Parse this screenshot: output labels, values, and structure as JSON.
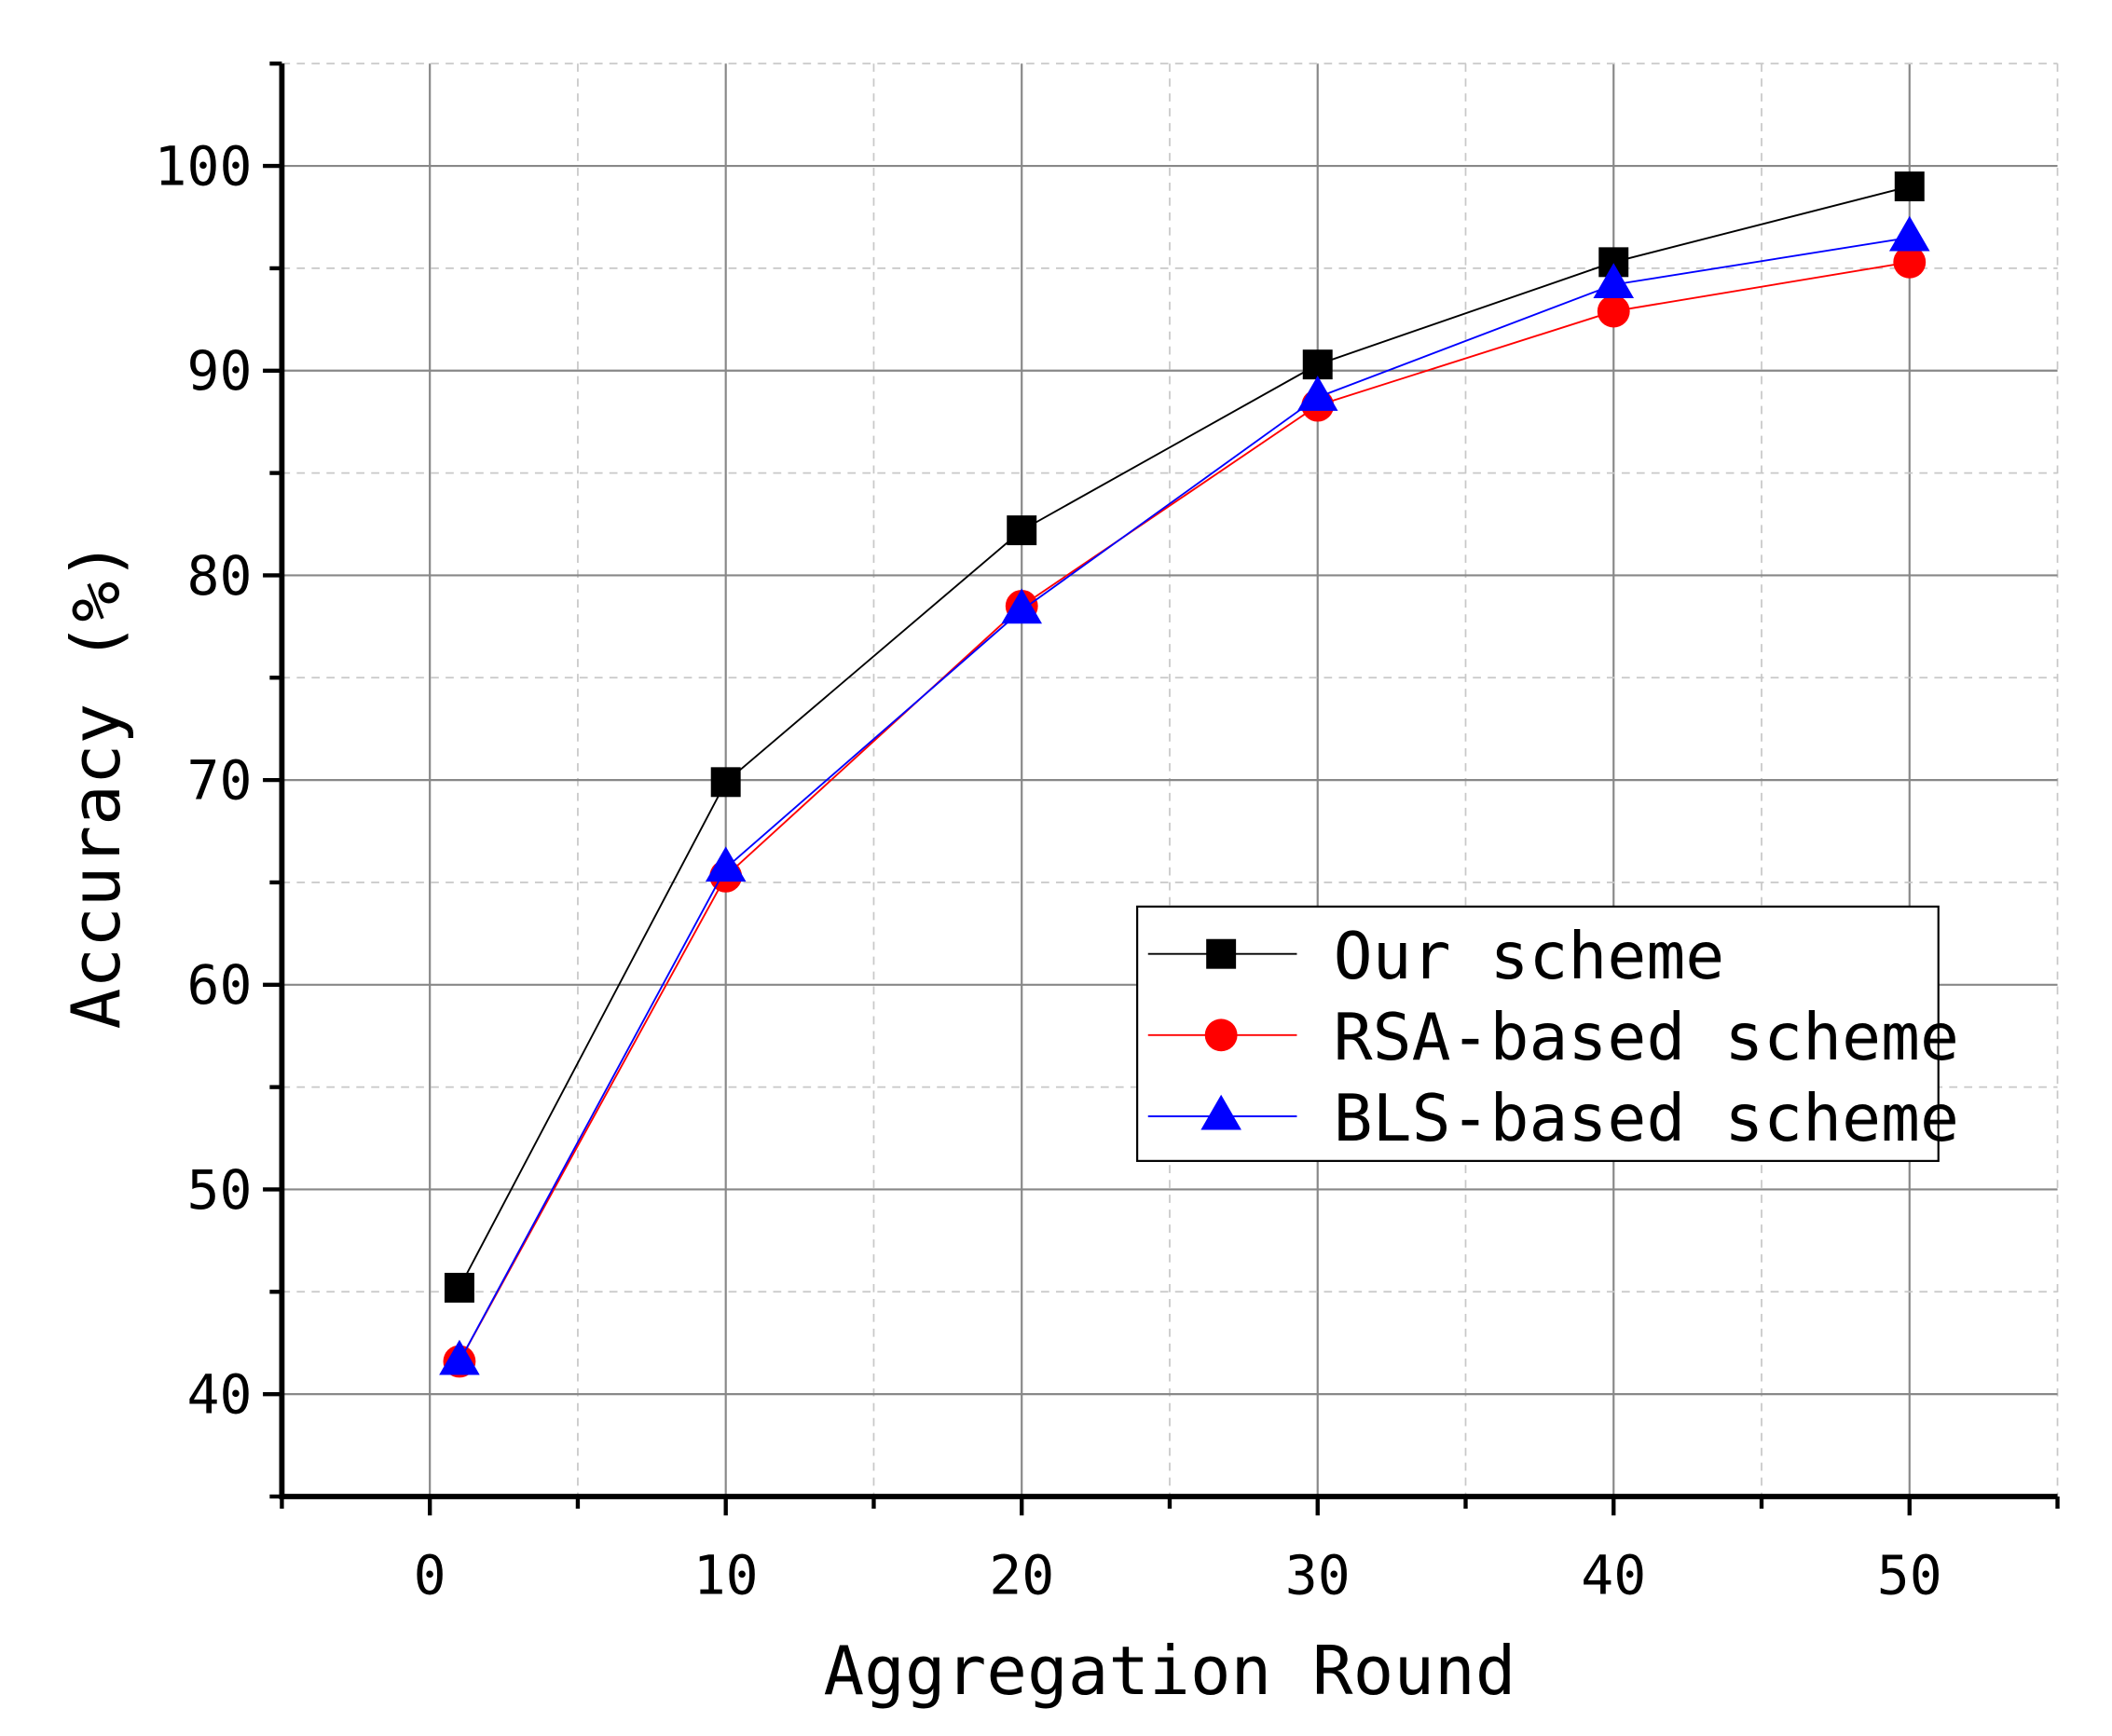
{
  "chart_data": {
    "type": "line",
    "title": "",
    "xlabel": "Aggregation Round",
    "ylabel": "Accuracy (%)",
    "xlim": [
      -5,
      55
    ],
    "ylim": [
      35,
      105
    ],
    "xticks": [
      0,
      10,
      20,
      30,
      40,
      50
    ],
    "yticks": [
      40,
      50,
      60,
      70,
      80,
      90,
      100
    ],
    "grid": true,
    "legend_position": "lower-right",
    "x": [
      1,
      10,
      20,
      30,
      40,
      50
    ],
    "series": [
      {
        "name": "Our scheme",
        "color": "#000000",
        "marker": "square",
        "values": [
          45.2,
          69.9,
          82.2,
          90.3,
          95.3,
          99.0
        ]
      },
      {
        "name": "RSA-based scheme",
        "color": "#ff0000",
        "marker": "circle",
        "values": [
          41.6,
          65.3,
          78.5,
          88.3,
          92.9,
          95.3
        ]
      },
      {
        "name": "BLS-based scheme",
        "color": "#0000ff",
        "marker": "triangle",
        "values": [
          41.6,
          65.7,
          78.3,
          88.7,
          94.2,
          96.5
        ]
      }
    ]
  }
}
